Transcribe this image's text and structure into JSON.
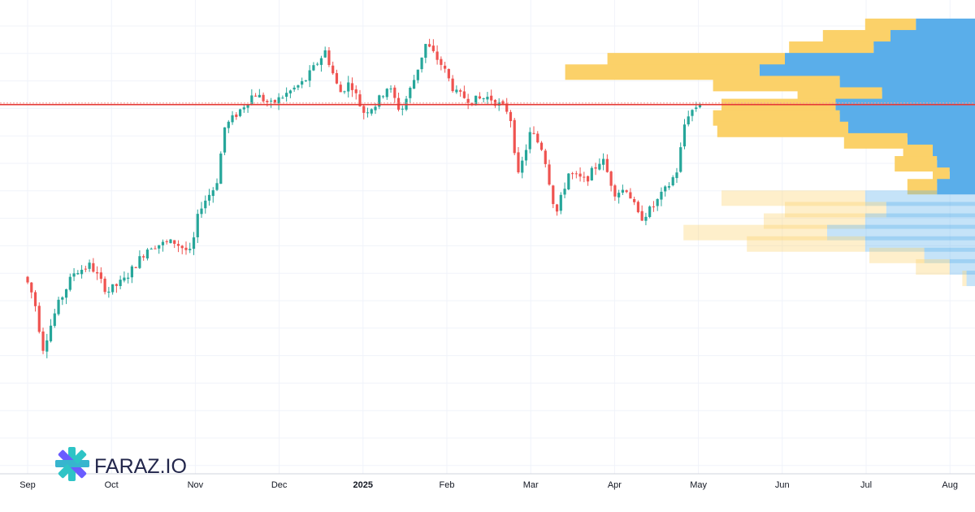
{
  "brand": {
    "name": "FARAZ.IO",
    "colors": {
      "logo_primary": "#2ec4c6",
      "logo_secondary": "#6a5cff",
      "text": "#22264b"
    }
  },
  "colors": {
    "up": "#26a69a",
    "down": "#ef5350",
    "vol_up": "#5aaeea",
    "vol_down": "#fbd169",
    "grid": "#f0f3fa",
    "price_line": "#e53935"
  },
  "chart_data": {
    "type": "candlestick",
    "title": "",
    "x_axis": {
      "ticks": [
        {
          "label": "Sep",
          "month": 0,
          "bold": false
        },
        {
          "label": "Oct",
          "month": 1,
          "bold": false
        },
        {
          "label": "Nov",
          "month": 2,
          "bold": false
        },
        {
          "label": "Dec",
          "month": 3,
          "bold": false
        },
        {
          "label": "2025",
          "month": 4,
          "bold": true
        },
        {
          "label": "Feb",
          "month": 5,
          "bold": false
        },
        {
          "label": "Mar",
          "month": 6,
          "bold": false
        },
        {
          "label": "Apr",
          "month": 7,
          "bold": false
        },
        {
          "label": "May",
          "month": 8,
          "bold": false
        },
        {
          "label": "Jun",
          "month": 9,
          "bold": false
        },
        {
          "label": "Jul",
          "month": 10,
          "bold": false
        },
        {
          "label": "Aug",
          "month": 11,
          "bold": false
        }
      ]
    },
    "y_range": [
      0,
      100
    ],
    "current_price": 79.0,
    "price_path": [
      [
        -0.05,
        35
      ],
      [
        0.08,
        28
      ],
      [
        0.18,
        15
      ],
      [
        0.35,
        26
      ],
      [
        0.55,
        35
      ],
      [
        0.75,
        37
      ],
      [
        0.95,
        30
      ],
      [
        1.15,
        33
      ],
      [
        1.45,
        42
      ],
      [
        1.75,
        43
      ],
      [
        1.95,
        40
      ],
      [
        2.05,
        52
      ],
      [
        2.25,
        58
      ],
      [
        2.35,
        73
      ],
      [
        2.55,
        78
      ],
      [
        2.7,
        82
      ],
      [
        2.9,
        79
      ],
      [
        3.1,
        82
      ],
      [
        3.3,
        85
      ],
      [
        3.55,
        93
      ],
      [
        3.72,
        82
      ],
      [
        3.85,
        85
      ],
      [
        4.0,
        77
      ],
      [
        4.15,
        79
      ],
      [
        4.3,
        84
      ],
      [
        4.45,
        77
      ],
      [
        4.6,
        85
      ],
      [
        4.75,
        95
      ],
      [
        4.95,
        89
      ],
      [
        5.1,
        82
      ],
      [
        5.3,
        80
      ],
      [
        5.5,
        81
      ],
      [
        5.75,
        77
      ],
      [
        5.85,
        60
      ],
      [
        6.0,
        72
      ],
      [
        6.15,
        67
      ],
      [
        6.3,
        50
      ],
      [
        6.45,
        61
      ],
      [
        6.65,
        59
      ],
      [
        6.85,
        65
      ],
      [
        7.0,
        56
      ],
      [
        7.15,
        57
      ],
      [
        7.3,
        49
      ],
      [
        7.45,
        52
      ],
      [
        7.65,
        58
      ],
      [
        7.75,
        62
      ],
      [
        7.85,
        76
      ],
      [
        8.05,
        80
      ]
    ],
    "volume_profile": [
      {
        "price": 99.5,
        "up": 12,
        "down": 14
      },
      {
        "price": 96.5,
        "up": 16,
        "down": 20
      },
      {
        "price": 93.5,
        "up": 20,
        "down": 24
      },
      {
        "price": 90.5,
        "up": 42,
        "down": 45
      },
      {
        "price": 87.5,
        "up": 46,
        "down": 51
      },
      {
        "price": 84.5,
        "up": 30,
        "down": 32
      },
      {
        "price": 81.5,
        "up": 20,
        "down": 22
      },
      {
        "price": 78.5,
        "up": 27,
        "down": 33
      },
      {
        "price": 75.5,
        "up": 30,
        "down": 32
      },
      {
        "price": 72.5,
        "up": 31,
        "down": 30
      },
      {
        "price": 69.5,
        "up": 15,
        "down": 16
      },
      {
        "price": 66.5,
        "up": 7,
        "down": 10
      },
      {
        "price": 63.5,
        "up": 10,
        "down": 9
      },
      {
        "price": 60.5,
        "up": 4,
        "down": 6
      },
      {
        "price": 57.5,
        "up": 7,
        "down": 9
      },
      {
        "price": 54.5,
        "up": 34,
        "down": 26,
        "faded": true
      },
      {
        "price": 51.5,
        "up": 24,
        "down": 21,
        "faded": true
      },
      {
        "price": 48.5,
        "up": 24,
        "down": 26,
        "faded": true
      },
      {
        "price": 45.5,
        "up": 34,
        "down": 35,
        "faded": true
      },
      {
        "price": 42.5,
        "up": 28,
        "down": 26,
        "faded": true
      },
      {
        "price": 39.5,
        "up": 13,
        "down": 12,
        "faded": true
      },
      {
        "price": 36.5,
        "up": 8,
        "down": 6,
        "faded": true
      },
      {
        "price": 33.5,
        "up": 1,
        "down": 2,
        "faded": true
      }
    ]
  }
}
